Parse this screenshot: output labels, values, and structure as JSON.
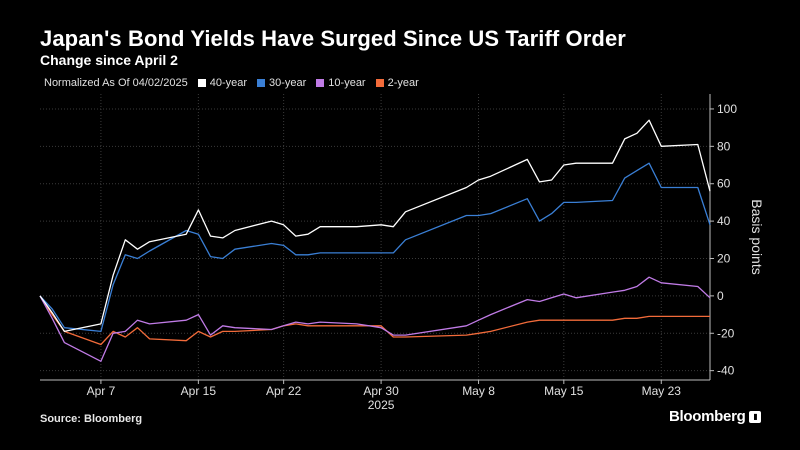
{
  "header": {
    "title": "Japan's Bond Yields Have Surged Since US Tariff Order",
    "subtitle": "Change since April 2"
  },
  "legend": {
    "note": "Normalized As Of 04/02/2025"
  },
  "footer": {
    "source": "Source: Bloomberg",
    "brand": "Bloomberg"
  },
  "colors": {
    "background": "#000000",
    "grid": "#3a3a3a",
    "axis_text": "#e0e0e0"
  },
  "chart_data": {
    "type": "line",
    "title": "Japan's Bond Yields Have Surged Since US Tariff Order",
    "subtitle": "Change since April 2",
    "ylabel": "Basis points",
    "ylim": [
      -45,
      108
    ],
    "yticks": [
      -40,
      -20,
      0,
      20,
      40,
      60,
      80,
      100
    ],
    "grid": true,
    "legend_position": "top-left",
    "x_domain": [
      "2025-04-02",
      "2025-05-27"
    ],
    "x_ticks": [
      {
        "date": "2025-04-07",
        "label": "Apr 7"
      },
      {
        "date": "2025-04-15",
        "label": "Apr 15"
      },
      {
        "date": "2025-04-22",
        "label": "Apr 22"
      },
      {
        "date": "2025-04-30",
        "label": "Apr 30"
      },
      {
        "date": "2025-05-08",
        "label": "May 8"
      },
      {
        "date": "2025-05-15",
        "label": "May 15"
      },
      {
        "date": "2025-05-23",
        "label": "May 23"
      }
    ],
    "year_label": {
      "date": "2025-04-30",
      "label": "2025"
    },
    "x": [
      "2025-04-02",
      "2025-04-03",
      "2025-04-04",
      "2025-04-07",
      "2025-04-08",
      "2025-04-09",
      "2025-04-10",
      "2025-04-11",
      "2025-04-14",
      "2025-04-15",
      "2025-04-16",
      "2025-04-17",
      "2025-04-18",
      "2025-04-21",
      "2025-04-22",
      "2025-04-23",
      "2025-04-24",
      "2025-04-25",
      "2025-04-28",
      "2025-04-30",
      "2025-05-01",
      "2025-05-02",
      "2025-05-07",
      "2025-05-08",
      "2025-05-09",
      "2025-05-12",
      "2025-05-13",
      "2025-05-14",
      "2025-05-15",
      "2025-05-16",
      "2025-05-19",
      "2025-05-20",
      "2025-05-21",
      "2025-05-22",
      "2025-05-23",
      "2025-05-26",
      "2025-05-27"
    ],
    "series": [
      {
        "name": "40-year",
        "color": "#ffffff",
        "values": [
          0,
          -9,
          -19,
          -15,
          11,
          30,
          25,
          29,
          33,
          46,
          32,
          31,
          35,
          40,
          38,
          32,
          33,
          37,
          37,
          38,
          37,
          45,
          58,
          62,
          64,
          73,
          61,
          62,
          70,
          71,
          71,
          84,
          87,
          94,
          80,
          81,
          56
        ]
      },
      {
        "name": "30-year",
        "color": "#3a7fd5",
        "values": [
          0,
          -7,
          -17,
          -19,
          6,
          22,
          20,
          24,
          35,
          33,
          21,
          20,
          25,
          28,
          27,
          22,
          22,
          23,
          23,
          23,
          23,
          30,
          43,
          43,
          44,
          52,
          40,
          44,
          50,
          50,
          51,
          63,
          67,
          71,
          58,
          58,
          38
        ]
      },
      {
        "name": "10-year",
        "color": "#c07be6",
        "values": [
          0,
          -12,
          -25,
          -35,
          -20,
          -19,
          -13,
          -15,
          -13,
          -10,
          -21,
          -16,
          -17,
          -18,
          -16,
          -14,
          -15,
          -14,
          -15,
          -17,
          -21,
          -21,
          -16,
          -13,
          -10,
          -2,
          -3,
          -1,
          1,
          -1,
          2,
          3,
          5,
          10,
          7,
          5,
          -1
        ]
      },
      {
        "name": "2-year",
        "color": "#f26b3a",
        "values": [
          0,
          -10,
          -19,
          -26,
          -19,
          -22,
          -17,
          -23,
          -24,
          -19,
          -22,
          -19,
          -19,
          -18,
          -16,
          -15,
          -16,
          -16,
          -16,
          -16,
          -22,
          -22,
          -21,
          -20,
          -19,
          -14,
          -13,
          -13,
          -13,
          -13,
          -13,
          -12,
          -12,
          -11,
          -11,
          -11,
          -11
        ]
      }
    ]
  }
}
